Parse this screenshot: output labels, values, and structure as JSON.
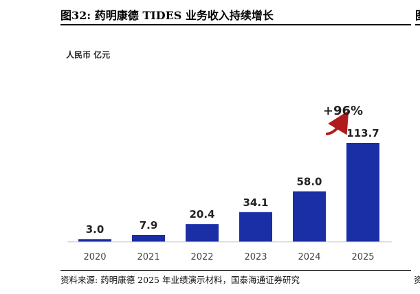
{
  "figure": {
    "title": "图32:  药明康德 TIDES 业务收入持续增长",
    "unit": "人民币 亿元",
    "source": "资料来源:  药明康德 2025 年业绩演示材料，国泰海通证券研究",
    "neighbor_title_fragment": "图",
    "neighbor_source_fragment": "资"
  },
  "chart_data": {
    "type": "bar",
    "categories": [
      "2020",
      "2021",
      "2022",
      "2023",
      "2024",
      "2025"
    ],
    "values": [
      3.0,
      7.9,
      20.4,
      34.1,
      58.0,
      113.7
    ],
    "value_labels": [
      "3.0",
      "7.9",
      "20.4",
      "34.1",
      "58.0",
      "113.7"
    ],
    "ylabel": "人民币 亿元",
    "ylim": [
      0,
      113.7
    ],
    "grid": false,
    "legend": "none",
    "annotation": {
      "text": "+96%",
      "target_category": "2025",
      "shape": "arrow-up-right"
    },
    "colors": {
      "bar": "#1a2ea6",
      "arrow": "#b01c1c",
      "axis": "#bfbfbf",
      "label": "#222222"
    }
  }
}
